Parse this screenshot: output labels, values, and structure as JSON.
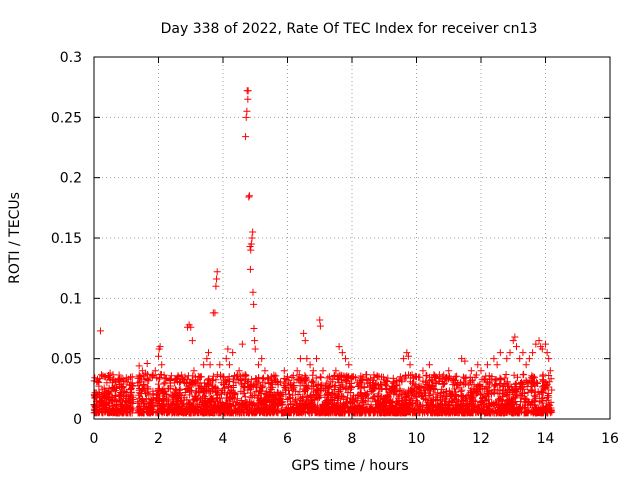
{
  "chart_data": {
    "type": "scatter",
    "title": "Day 338 of 2022, Rate Of TEC Index for receiver cn13",
    "xlabel": "GPS time / hours",
    "ylabel": "ROTI / TECUs",
    "xlim": [
      0,
      16
    ],
    "ylim": [
      0,
      0.3
    ],
    "x_ticks": [
      0,
      2,
      4,
      6,
      8,
      10,
      12,
      14,
      16
    ],
    "x_tick_labels": [
      "0",
      "2",
      "4",
      "6",
      "8",
      "10",
      "12",
      "14",
      "16"
    ],
    "y_ticks": [
      0,
      0.05,
      0.1,
      0.15,
      0.2,
      0.25,
      0.3
    ],
    "y_tick_labels": [
      "0",
      "0.05",
      "0.1",
      "0.15",
      "0.2",
      "0.25",
      "0.3"
    ],
    "grid": true,
    "marker": "+",
    "marker_color": "#ff0000",
    "series": [
      {
        "name": "ROTI",
        "points": [
          [
            0.0,
            0.012
          ],
          [
            0.05,
            0.018
          ],
          [
            0.1,
            0.01
          ],
          [
            0.15,
            0.022
          ],
          [
            0.2,
            0.073
          ],
          [
            0.25,
            0.015
          ],
          [
            0.3,
            0.02
          ],
          [
            0.4,
            0.03
          ],
          [
            0.45,
            0.036
          ],
          [
            0.5,
            0.038
          ],
          [
            0.55,
            0.018
          ],
          [
            0.6,
            0.025
          ],
          [
            0.7,
            0.012
          ],
          [
            0.8,
            0.02
          ],
          [
            0.9,
            0.026
          ],
          [
            1.0,
            0.022
          ],
          [
            1.05,
            0.01
          ],
          [
            1.1,
            0.028
          ],
          [
            1.2,
            0.018
          ],
          [
            1.4,
            0.044
          ],
          [
            1.45,
            0.035
          ],
          [
            1.5,
            0.04
          ],
          [
            1.6,
            0.038
          ],
          [
            1.65,
            0.046
          ],
          [
            1.7,
            0.02
          ],
          [
            1.8,
            0.015
          ],
          [
            1.9,
            0.04
          ],
          [
            2.0,
            0.052
          ],
          [
            2.02,
            0.058
          ],
          [
            2.05,
            0.06
          ],
          [
            2.1,
            0.045
          ],
          [
            2.2,
            0.03
          ],
          [
            2.3,
            0.025
          ],
          [
            2.5,
            0.03
          ],
          [
            2.6,
            0.035
          ],
          [
            2.8,
            0.03
          ],
          [
            2.9,
            0.076
          ],
          [
            2.95,
            0.078
          ],
          [
            3.0,
            0.076
          ],
          [
            3.05,
            0.065
          ],
          [
            3.1,
            0.04
          ],
          [
            3.2,
            0.03
          ],
          [
            3.3,
            0.035
          ],
          [
            3.4,
            0.045
          ],
          [
            3.5,
            0.05
          ],
          [
            3.55,
            0.055
          ],
          [
            3.6,
            0.045
          ],
          [
            3.7,
            0.088
          ],
          [
            3.75,
            0.088
          ],
          [
            3.78,
            0.11
          ],
          [
            3.8,
            0.116
          ],
          [
            3.82,
            0.122
          ],
          [
            3.9,
            0.045
          ],
          [
            4.0,
            0.035
          ],
          [
            4.1,
            0.05
          ],
          [
            4.15,
            0.058
          ],
          [
            4.2,
            0.045
          ],
          [
            4.3,
            0.055
          ],
          [
            4.4,
            0.03
          ],
          [
            4.5,
            0.04
          ],
          [
            4.6,
            0.062
          ],
          [
            4.7,
            0.234
          ],
          [
            4.72,
            0.25
          ],
          [
            4.74,
            0.255
          ],
          [
            4.75,
            0.272
          ],
          [
            4.77,
            0.265
          ],
          [
            4.78,
            0.272
          ],
          [
            4.8,
            0.184
          ],
          [
            4.82,
            0.185
          ],
          [
            4.84,
            0.143
          ],
          [
            4.85,
            0.124
          ],
          [
            4.86,
            0.14
          ],
          [
            4.88,
            0.145
          ],
          [
            4.9,
            0.15
          ],
          [
            4.92,
            0.155
          ],
          [
            4.93,
            0.105
          ],
          [
            4.95,
            0.095
          ],
          [
            4.96,
            0.075
          ],
          [
            4.98,
            0.065
          ],
          [
            5.0,
            0.058
          ],
          [
            5.1,
            0.045
          ],
          [
            5.2,
            0.05
          ],
          [
            5.3,
            0.04
          ],
          [
            5.5,
            0.035
          ],
          [
            5.7,
            0.03
          ],
          [
            5.9,
            0.04
          ],
          [
            6.0,
            0.035
          ],
          [
            6.2,
            0.03
          ],
          [
            6.3,
            0.04
          ],
          [
            6.4,
            0.05
          ],
          [
            6.5,
            0.071
          ],
          [
            6.55,
            0.065
          ],
          [
            6.6,
            0.05
          ],
          [
            6.7,
            0.045
          ],
          [
            6.8,
            0.04
          ],
          [
            6.9,
            0.05
          ],
          [
            7.0,
            0.082
          ],
          [
            7.02,
            0.077
          ],
          [
            7.1,
            0.04
          ],
          [
            7.3,
            0.035
          ],
          [
            7.5,
            0.04
          ],
          [
            7.6,
            0.06
          ],
          [
            7.7,
            0.055
          ],
          [
            7.8,
            0.05
          ],
          [
            7.9,
            0.045
          ],
          [
            8.0,
            0.035
          ],
          [
            8.3,
            0.03
          ],
          [
            8.5,
            0.032
          ],
          [
            8.8,
            0.035
          ],
          [
            9.0,
            0.03
          ],
          [
            9.3,
            0.03
          ],
          [
            9.5,
            0.035
          ],
          [
            9.6,
            0.05
          ],
          [
            9.7,
            0.055
          ],
          [
            9.75,
            0.052
          ],
          [
            9.8,
            0.045
          ],
          [
            10.0,
            0.035
          ],
          [
            10.2,
            0.04
          ],
          [
            10.4,
            0.045
          ],
          [
            10.6,
            0.03
          ],
          [
            10.8,
            0.035
          ],
          [
            11.0,
            0.04
          ],
          [
            11.2,
            0.035
          ],
          [
            11.4,
            0.05
          ],
          [
            11.5,
            0.048
          ],
          [
            11.7,
            0.04
          ],
          [
            11.9,
            0.045
          ],
          [
            12.0,
            0.04
          ],
          [
            12.2,
            0.045
          ],
          [
            12.4,
            0.05
          ],
          [
            12.5,
            0.045
          ],
          [
            12.6,
            0.055
          ],
          [
            12.8,
            0.05
          ],
          [
            12.9,
            0.055
          ],
          [
            13.0,
            0.065
          ],
          [
            13.05,
            0.068
          ],
          [
            13.1,
            0.06
          ],
          [
            13.2,
            0.05
          ],
          [
            13.3,
            0.055
          ],
          [
            13.4,
            0.045
          ],
          [
            13.5,
            0.05
          ],
          [
            13.6,
            0.055
          ],
          [
            13.7,
            0.062
          ],
          [
            13.8,
            0.065
          ],
          [
            13.85,
            0.06
          ],
          [
            13.9,
            0.058
          ],
          [
            14.0,
            0.062
          ],
          [
            14.05,
            0.055
          ],
          [
            14.1,
            0.05
          ],
          [
            14.15,
            0.04
          ]
        ]
      }
    ]
  }
}
